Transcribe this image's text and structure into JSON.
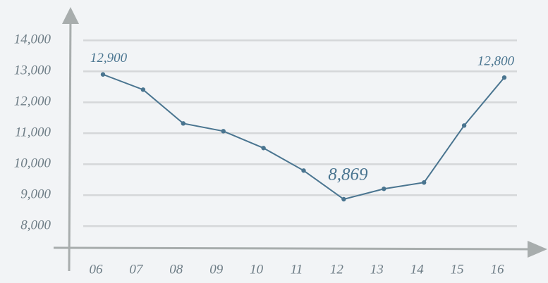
{
  "chart_data": {
    "type": "line",
    "categories": [
      "06",
      "07",
      "08",
      "09",
      "10",
      "11",
      "12",
      "13",
      "14",
      "15",
      "16"
    ],
    "series": [
      {
        "color": "#4a7590",
        "values": [
          12900,
          12409,
          11318,
          11068,
          10523,
          9795,
          8869,
          9205,
          9409,
          11250,
          12800
        ],
        "value_labels": [
          "12,900",
          null,
          null,
          null,
          null,
          null,
          "8,869",
          null,
          null,
          null,
          "12,800"
        ]
      }
    ],
    "ylim": [
      7300,
      14850
    ],
    "yticks": [
      {
        "value": 8000,
        "label": "8,000"
      },
      {
        "value": 9000,
        "label": "9,000"
      },
      {
        "value": 10000,
        "label": "10,000"
      },
      {
        "value": 11000,
        "label": "11,000"
      },
      {
        "value": 12000,
        "label": "12,000"
      },
      {
        "value": 13000,
        "label": "13,000"
      },
      {
        "value": 14000,
        "label": "14,000"
      }
    ],
    "grid": true
  }
}
